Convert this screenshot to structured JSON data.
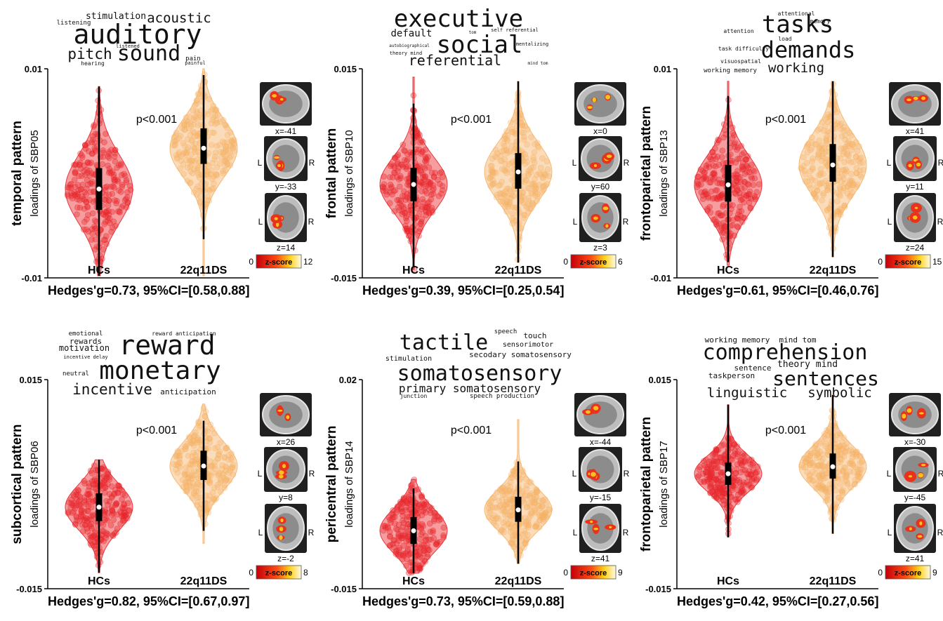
{
  "colors": {
    "hc": "#e8262b",
    "ds": "#f6b266",
    "box": "#000000",
    "median": "#ffffff",
    "brain_bg": "#9a9a9a",
    "activation": "#f7c21b"
  },
  "icons": [
    "brain-sagittal-icon",
    "brain-coronal-icon",
    "brain-axial-icon",
    "colorbar-icon"
  ],
  "chart_data": [
    {
      "type": "violin",
      "ylabel_bold": "temporal pattern",
      "ylabel": "loadings of SBP05",
      "ylim": [
        -0.01,
        0.01
      ],
      "y_ticks": [
        "0.01",
        "-0.01"
      ],
      "categories": [
        "HCs",
        "22q11DS"
      ],
      "series": [
        {
          "name": "HCs",
          "median": -0.0015,
          "q1": -0.0035,
          "q3": 0.0005,
          "whisker_low": -0.0098,
          "whisker_high": 0.0083,
          "max": 0.0083,
          "min": -0.0098,
          "mode": -0.0015
        },
        {
          "name": "22q11DS",
          "median": 0.0024,
          "q1": 0.0009,
          "q3": 0.0043,
          "whisker_low": -0.0063,
          "whisker_high": 0.0094,
          "max": 0.01,
          "min": -0.0098,
          "mode": 0.0024
        }
      ],
      "p_value": "p<0.001",
      "effect": "Hedges'g=0.73, 95%CI=[0.58,0.88]",
      "brain_labels": [
        "x=-41",
        "y=-33",
        "z=14"
      ],
      "colorbar": {
        "min": "0",
        "max": "12",
        "label": "z-score"
      },
      "wordcloud": [
        {
          "text": "stimulation",
          "size": 13
        },
        {
          "text": "acoustic",
          "size": 19
        },
        {
          "text": "listening",
          "size": 9
        },
        {
          "text": "auditory",
          "size": 38
        },
        {
          "text": "listened",
          "size": 7
        },
        {
          "text": "pitch",
          "size": 21
        },
        {
          "text": "sound",
          "size": 30
        },
        {
          "text": "pain",
          "size": 9
        },
        {
          "text": "hearing",
          "size": 8
        },
        {
          "text": "painful",
          "size": 7
        }
      ]
    },
    {
      "type": "violin",
      "ylabel_bold": "frontal pattern",
      "ylabel": "loadings of SBP10",
      "ylim": [
        -0.015,
        0.015
      ],
      "y_ticks": [
        "0.015",
        "-0.015"
      ],
      "categories": [
        "HCs",
        "22q11DS"
      ],
      "series": [
        {
          "name": "HCs",
          "median": -0.0016,
          "q1": -0.004,
          "q3": 0.0008,
          "whisker_low": -0.0135,
          "whisker_high": 0.01,
          "max": 0.0138,
          "min": -0.0138,
          "mode": -0.0016
        },
        {
          "name": "22q11DS",
          "median": 0.0002,
          "q1": -0.0022,
          "q3": 0.0029,
          "whisker_low": -0.0128,
          "whisker_high": 0.0132,
          "max": 0.0132,
          "min": -0.0128,
          "mode": 0.0002
        }
      ],
      "p_value": "p<0.001",
      "effect": "Hedges'g=0.39, 95%CI=[0.25,0.54]",
      "brain_labels": [
        "x=0",
        "y=60",
        "z=3"
      ],
      "colorbar": {
        "min": "0",
        "max": "6",
        "label": "z-score"
      },
      "wordcloud": [
        {
          "text": "executive",
          "size": 34
        },
        {
          "text": "default",
          "size": 14
        },
        {
          "text": "tom",
          "size": 6
        },
        {
          "text": "self referential",
          "size": 7
        },
        {
          "text": "autobiographical",
          "size": 6
        },
        {
          "text": "social",
          "size": 34
        },
        {
          "text": "mentalizing",
          "size": 7
        },
        {
          "text": "theory mind",
          "size": 7
        },
        {
          "text": "referential",
          "size": 20
        },
        {
          "text": "mind tom",
          "size": 6
        }
      ]
    },
    {
      "type": "violin",
      "ylabel_bold": "frontoparietal pattern",
      "ylabel": "loadings of SBP13",
      "ylim": [
        -0.01,
        0.01
      ],
      "y_ticks": [
        "0.01",
        "-0.01"
      ],
      "categories": [
        "HCs",
        "22q11DS"
      ],
      "series": [
        {
          "name": "HCs",
          "median": -0.0011,
          "q1": -0.0027,
          "q3": 0.0008,
          "whisker_low": -0.0085,
          "whisker_high": 0.0074,
          "max": 0.0088,
          "min": -0.0088,
          "mode": -0.0011
        },
        {
          "name": "22q11DS",
          "median": 0.0008,
          "q1": -0.0008,
          "q3": 0.0028,
          "whisker_low": -0.008,
          "whisker_high": 0.0088,
          "max": 0.0088,
          "min": -0.008,
          "mode": 0.0008
        }
      ],
      "p_value": "p<0.001",
      "effect": "Hedges'g=0.61, 95%CI=[0.46,0.76]",
      "brain_labels": [
        "x=41",
        "y=11",
        "z=24"
      ],
      "colorbar": {
        "min": "0",
        "max": "15",
        "label": "z-score"
      },
      "wordcloud": [
        {
          "text": "attentional",
          "size": 8
        },
        {
          "text": "tasks",
          "size": 34
        },
        {
          "text": "memory",
          "size": 8
        },
        {
          "text": "attention",
          "size": 8
        },
        {
          "text": "load",
          "size": 8
        },
        {
          "text": "task difficulty",
          "size": 8
        },
        {
          "text": "demands",
          "size": 32
        },
        {
          "text": "visuospatial",
          "size": 8
        },
        {
          "text": "working memory",
          "size": 9
        },
        {
          "text": "working",
          "size": 19
        }
      ]
    },
    {
      "type": "violin",
      "ylabel_bold": "subcortical pattern",
      "ylabel": "loadings of SBP06",
      "ylim": [
        -0.015,
        0.015
      ],
      "y_ticks": [
        "0.015",
        "-0.015"
      ],
      "categories": [
        "HCs",
        "22q11DS"
      ],
      "series": [
        {
          "name": "HCs",
          "median": -0.0033,
          "q1": -0.0053,
          "q3": -0.0013,
          "whisker_low": -0.0127,
          "whisker_high": 0.0035,
          "max": 0.0035,
          "min": -0.0127,
          "mode": -0.0033
        },
        {
          "name": "22q11DS",
          "median": 0.0026,
          "q1": 0.0006,
          "q3": 0.0048,
          "whisker_low": -0.0067,
          "whisker_high": 0.0091,
          "max": 0.0115,
          "min": -0.0085,
          "mode": 0.0026
        }
      ],
      "p_value": "p<0.001",
      "effect": "Hedges'g=0.82, 95%CI=[0.67,0.97]",
      "brain_labels": [
        "x=26",
        "y=8",
        "z=-2"
      ],
      "colorbar": {
        "min": "0",
        "max": "8",
        "label": "z-score"
      },
      "wordcloud": [
        {
          "text": "emotional",
          "size": 9
        },
        {
          "text": "reward anticipation",
          "size": 8
        },
        {
          "text": "rewards",
          "size": 11
        },
        {
          "text": "reward",
          "size": 38
        },
        {
          "text": "motivation",
          "size": 12
        },
        {
          "text": "incentive delay",
          "size": 7
        },
        {
          "text": "neutral",
          "size": 9
        },
        {
          "text": "monetary",
          "size": 36
        },
        {
          "text": "incentive",
          "size": 21
        },
        {
          "text": "anticipation",
          "size": 11
        }
      ]
    },
    {
      "type": "violin",
      "ylabel_bold": "pericentral pattern",
      "ylabel": "loadings of SBP14",
      "ylim": [
        -0.015,
        0.02
      ],
      "y_ticks": [
        "0.02",
        "-0.015"
      ],
      "categories": [
        "HCs",
        "22q11DS"
      ],
      "series": [
        {
          "name": "HCs",
          "median": -0.0053,
          "q1": -0.0075,
          "q3": -0.003,
          "whisker_low": -0.0124,
          "whisker_high": 0.0018,
          "max": 0.0033,
          "min": -0.0124,
          "mode": -0.0053
        },
        {
          "name": "22q11DS",
          "median": -0.0018,
          "q1": -0.0038,
          "q3": 0.0004,
          "whisker_low": -0.0108,
          "whisker_high": 0.0063,
          "max": 0.0133,
          "min": -0.0108,
          "mode": -0.0018
        }
      ],
      "p_value": "p<0.001",
      "effect": "Hedges'g=0.73, 95%CI=[0.59,0.88]",
      "brain_labels": [
        "x=-44",
        "y=-15",
        "z=41"
      ],
      "colorbar": {
        "min": "0",
        "max": "9",
        "label": "z-score"
      },
      "wordcloud": [
        {
          "text": "speech",
          "size": 9
        },
        {
          "text": "touch",
          "size": 11
        },
        {
          "text": "tactile",
          "size": 30
        },
        {
          "text": "sensorimotor",
          "size": 10
        },
        {
          "text": "stimulation",
          "size": 10
        },
        {
          "text": "secodary somatosensory",
          "size": 11
        },
        {
          "text": "somatosensory",
          "size": 30
        },
        {
          "text": "primary somatosensory",
          "size": 16
        },
        {
          "text": "junction",
          "size": 8
        },
        {
          "text": "speech production",
          "size": 9
        }
      ]
    },
    {
      "type": "violin",
      "ylabel_bold": "frontoparietal pattern",
      "ylabel": "loadings of SBP17",
      "ylim": [
        -0.015,
        0.015
      ],
      "y_ticks": [
        "0.015",
        "-0.015"
      ],
      "categories": [
        "HCs",
        "22q11DS"
      ],
      "series": [
        {
          "name": "HCs",
          "median": 0.0015,
          "q1": -0.0001,
          "q3": 0.0031,
          "whisker_low": -0.0076,
          "whisker_high": 0.0114,
          "max": 0.0114,
          "min": -0.0076,
          "mode": 0.0015
        },
        {
          "name": "22q11DS",
          "median": 0.0025,
          "q1": 0.0008,
          "q3": 0.0044,
          "whisker_low": -0.0071,
          "whisker_high": 0.0128,
          "max": 0.0128,
          "min": -0.0071,
          "mode": 0.0025
        }
      ],
      "p_value": "p<0.001",
      "effect": "Hedges'g=0.42, 95%CI=[0.27,0.56]",
      "brain_labels": [
        "x=-30",
        "y=-45",
        "z=41"
      ],
      "colorbar": {
        "min": "0",
        "max": "9",
        "label": "z-score"
      },
      "wordcloud": [
        {
          "text": "working memory",
          "size": 11
        },
        {
          "text": "mind tom",
          "size": 11
        },
        {
          "text": "comprehension",
          "size": 30
        },
        {
          "text": "sentence",
          "size": 11
        },
        {
          "text": "theory mind",
          "size": 13
        },
        {
          "text": "taskperson",
          "size": 11
        },
        {
          "text": "sentences",
          "size": 28
        },
        {
          "text": "linguistic",
          "size": 19
        },
        {
          "text": "symbolic",
          "size": 19
        }
      ]
    }
  ]
}
